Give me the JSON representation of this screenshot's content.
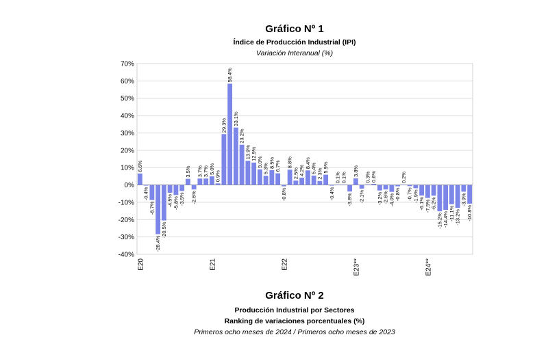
{
  "chart1": {
    "title": "Gráfico Nº 1",
    "subtitle": "Índice de Producción Industrial (IPI)",
    "subtitle2": "Variación Interanual (%)"
  },
  "chart2": {
    "title": "Gráfico Nº 2",
    "subtitle": "Producción Industrial por Sectores",
    "subtitle2": "Ranking de variaciones porcentuales (%)",
    "subtitle3": "Primeros ocho meses de 2024 / Primeros ocho meses de 2023"
  },
  "chart_data": {
    "type": "bar",
    "ylim": [
      -40,
      70
    ],
    "yticks": [
      -40,
      -30,
      -20,
      -10,
      0,
      10,
      20,
      30,
      40,
      50,
      60,
      70
    ],
    "ytick_labels": [
      "-40%",
      "-30%",
      "-20%",
      "-10%",
      "0%",
      "10%",
      "20%",
      "30%",
      "40%",
      "50%",
      "60%",
      "70%"
    ],
    "grid": true,
    "bar_color": "#7b86e8",
    "x_tick_labels": [
      {
        "index": 0,
        "label": "E20"
      },
      {
        "index": 12,
        "label": "E21"
      },
      {
        "index": 24,
        "label": "E22"
      },
      {
        "index": 36,
        "label": "E23**"
      },
      {
        "index": 48,
        "label": "E24**"
      }
    ],
    "values": [
      6.6,
      -0.4,
      -8.7,
      -28.4,
      -20.5,
      -4.5,
      -5.8,
      -3.5,
      3.5,
      -2.6,
      3.7,
      3.7,
      5.0,
      0.9,
      29.3,
      58.4,
      33.1,
      23.2,
      13.9,
      12.9,
      9.0,
      5.3,
      8.5,
      6.7,
      -0.8,
      8.8,
      2.5,
      4.2,
      8.4,
      5.4,
      2.3,
      5.9,
      -0.4,
      0.1,
      0.1,
      -3.8,
      3.8,
      -2.1,
      0.3,
      0.6,
      -3.2,
      -2.6,
      -4.0,
      -0.8,
      0.2,
      -0.7,
      -1.9,
      -6.1,
      -7.5,
      -6.2,
      -15.2,
      -14.4,
      -11.1,
      -13.2,
      -3.9,
      -10.8
    ],
    "labels": [
      "6.6%",
      "-0.4%",
      "-8.7%",
      "-28.4%",
      "-20.5%",
      "-4.5%",
      "-5.8%",
      "-3.5%",
      "3.5%",
      "-2.6%",
      "3.7%",
      "3.7%",
      "5.0%",
      "0.9%",
      "29.3%",
      "58.4%",
      "33.1%",
      "23.2%",
      "13.9%",
      "12.9%",
      "9.0%",
      "5.3%",
      "8.5%",
      "6.7%",
      "-0.8%",
      "8.8%",
      "2.5%",
      "4.2%",
      "8.4%",
      "5.4%",
      "2.3%",
      "5.9%",
      "-0.4%",
      "0.1%",
      "0.1%",
      "-3.8%",
      "3.8%",
      "-2.1%",
      "0.3%",
      "0.6%",
      "-3.2%",
      "-2.6%",
      "-4.0%",
      "-0.8%",
      "0.2%",
      "-0.7%",
      "-1.9%",
      "-6.1%",
      "-7.5%",
      "-6.2%",
      "-15.2%",
      "-14.4%",
      "-11.1%",
      "-13.2%",
      "-3.9%",
      "-10.8%"
    ]
  }
}
